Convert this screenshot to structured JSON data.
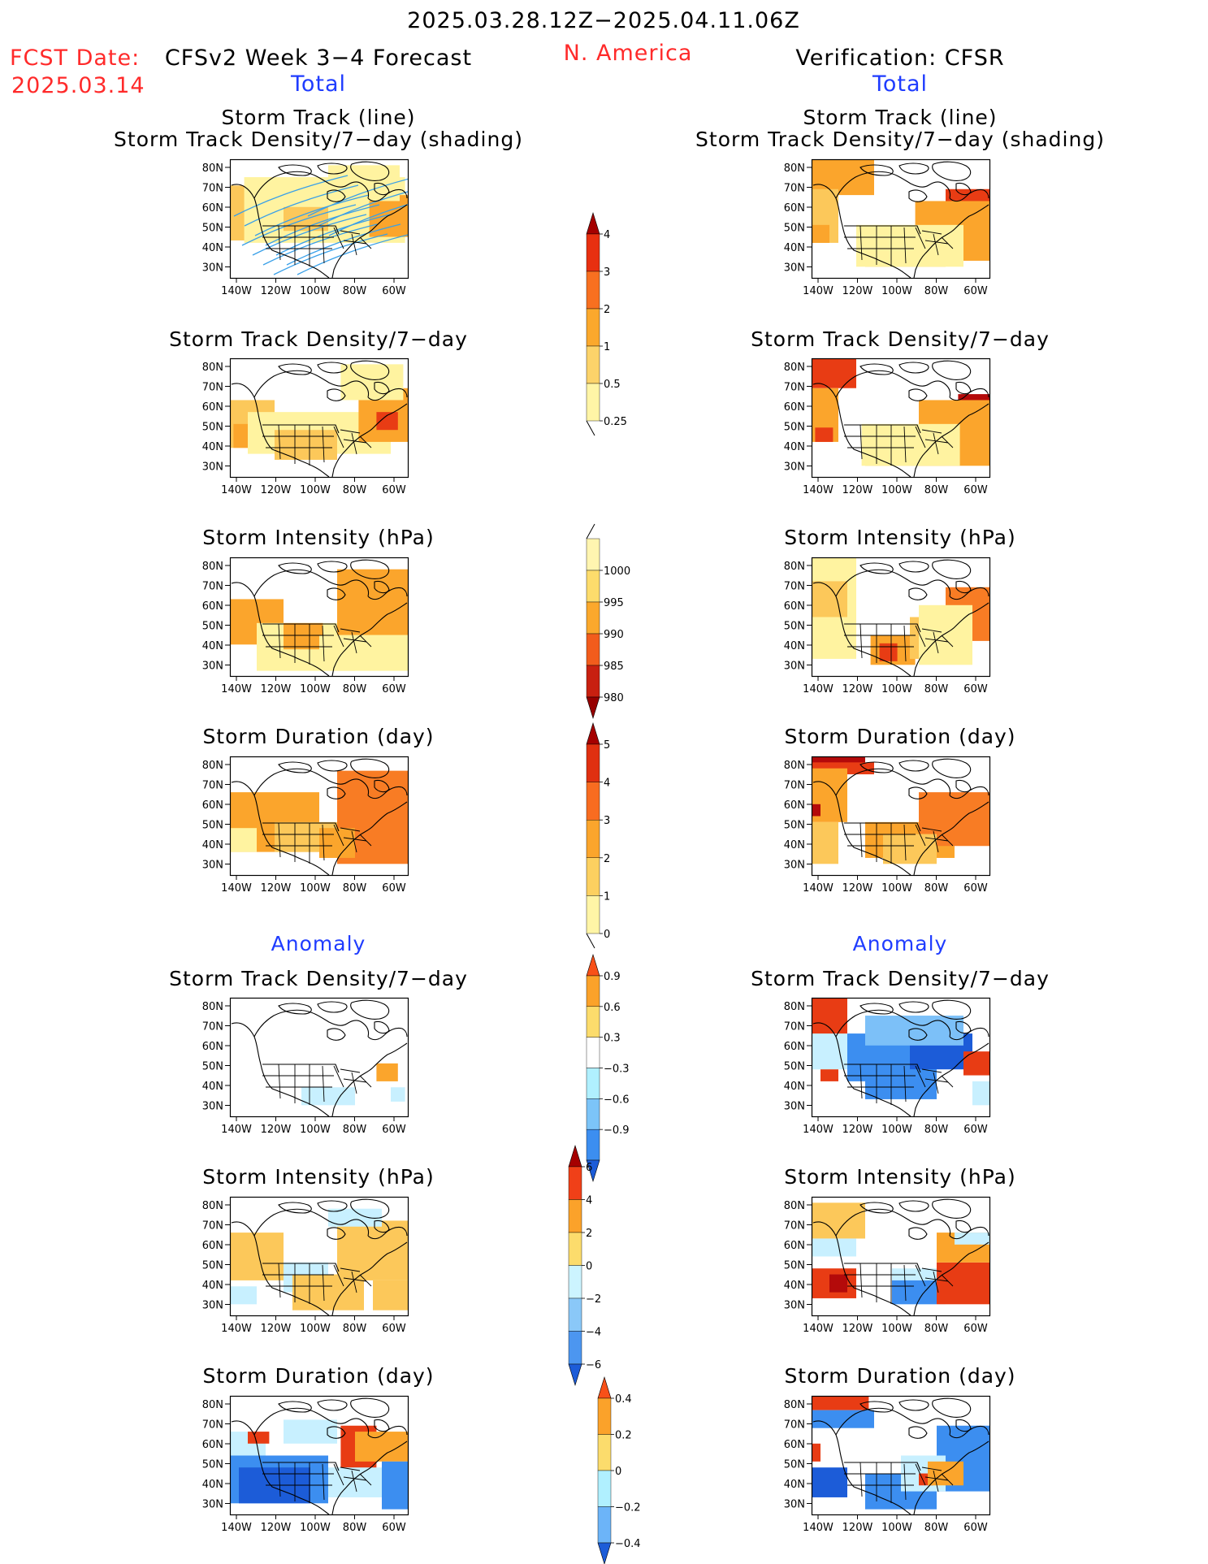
{
  "header": {
    "date_range": "2025.03.28.12Z−2025.04.11.06Z",
    "fcst_label": "FCST Date:",
    "fcst_date": "2025.03.14",
    "left_title": "CFSv2 Week 3−4 Forecast",
    "region": "N. America",
    "right_title": "Verification: CFSR"
  },
  "sections": {
    "total_left": "Total",
    "total_right": "Total",
    "anomaly_left": "Anomaly",
    "anomaly_right": "Anomaly"
  },
  "panels": {
    "p1_l1": "Storm Track (line)",
    "p1_l2": "Storm Track Density/7−day (shading)",
    "p2": "Storm Track Density/7−day",
    "p3": "Storm Intensity (hPa)",
    "p4": "Storm Duration (day)",
    "p5": "Storm Track Density/7−day",
    "p6": "Storm Intensity (hPa)",
    "p7": "Storm Duration (day)"
  },
  "axes": {
    "lat": [
      "80N",
      "70N",
      "60N",
      "50N",
      "40N",
      "30N"
    ],
    "lon": [
      "140W",
      "120W",
      "100W",
      "80W",
      "60W"
    ]
  },
  "colorbars": [
    {
      "name": "density-total",
      "labels": [
        "4",
        "3",
        "2",
        "1",
        "0.5",
        "0.25"
      ],
      "colors": [
        "#a50000",
        "#e83010",
        "#f87020",
        "#fba82c",
        "#fcd36a",
        "#fff5a6"
      ],
      "top_arrow": true,
      "bottom_tail": true
    },
    {
      "name": "intensity-total",
      "labels": [
        "1000",
        "995",
        "990",
        "985",
        "980"
      ],
      "colors": [
        "#fff5b0",
        "#fddc6c",
        "#fba82c",
        "#f25c1c",
        "#c82010",
        "#960000"
      ],
      "top_tail": true,
      "bottom_arrow": true
    },
    {
      "name": "duration-total",
      "labels": [
        "5",
        "4",
        "3",
        "2",
        "1",
        "0"
      ],
      "colors": [
        "#a50000",
        "#e03010",
        "#f86c20",
        "#fba52c",
        "#fcd060",
        "#fff5a6"
      ],
      "top_arrow": true,
      "bottom_tail": true
    },
    {
      "name": "density-anomaly",
      "labels": [
        "0.9",
        "0.6",
        "0.3",
        "−0.3",
        "−0.6",
        "−0.9"
      ],
      "colors": [
        "#f85018",
        "#fba22a",
        "#fcdc6c",
        "#ffffff",
        "#b0f0ff",
        "#7cc4f8",
        "#3c8ef0",
        "#1c5cd8"
      ],
      "top_arrow": true,
      "bottom_arrow": true
    },
    {
      "name": "intensity-anomaly",
      "labels": [
        "6",
        "4",
        "2",
        "0",
        "−2",
        "−4",
        "−6"
      ],
      "colors": [
        "#a50000",
        "#f04018",
        "#fba22a",
        "#fcdc6c",
        "#ccf4ff",
        "#8ac8f8",
        "#4c96f0",
        "#1c5cd8"
      ],
      "top_arrow": true,
      "bottom_arrow": true
    },
    {
      "name": "duration-anomaly",
      "labels": [
        "0.4",
        "0.2",
        "0",
        "−0.2",
        "−0.4"
      ],
      "colors": [
        "#f85018",
        "#fba22a",
        "#fcdc6c",
        "#b0f0ff",
        "#6cb4f8",
        "#1c5cd8"
      ],
      "top_arrow": true,
      "bottom_arrow": true
    }
  ],
  "colors": {
    "header_red": "#ff2a2a",
    "label_blue": "#1f3cff",
    "storm_track_line": "#3aa0e8"
  }
}
